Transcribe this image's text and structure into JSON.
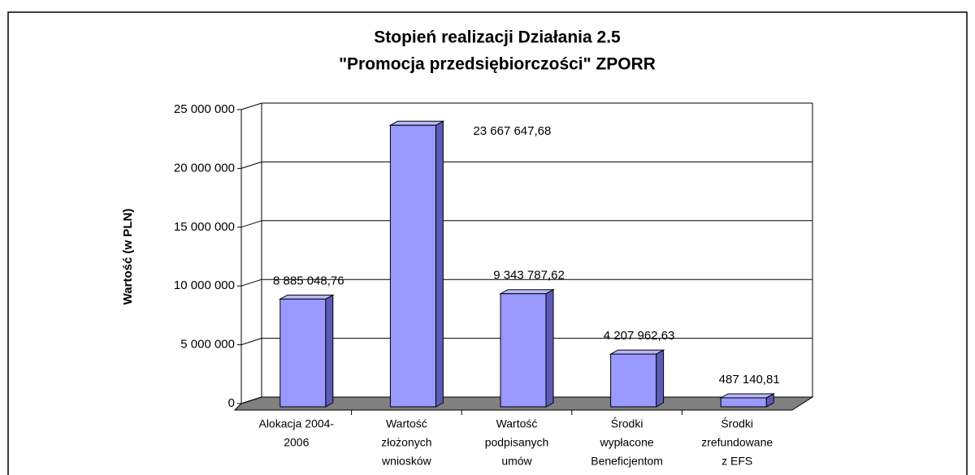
{
  "chart_data": {
    "type": "bar3d",
    "title": [
      "Stopień realizacji Działania 2.5",
      "\"Promocja przedsiębiorczości\" ZPORR"
    ],
    "y_label": "Wartość (w PLN)",
    "categories": [
      [
        "Alokacja 2004-",
        "2006"
      ],
      [
        "Wartość",
        "złożonych",
        "wniosków"
      ],
      [
        "Wartość",
        "podpisanych",
        "umów"
      ],
      [
        "Środki",
        "wypłacone",
        "Beneficjentom"
      ],
      [
        "Środki",
        "zrefundowane",
        "z EFS"
      ]
    ],
    "values": [
      8885048.76,
      23667647.68,
      9343787.62,
      4207962.63,
      487140.81
    ],
    "value_labels": [
      "8 885 048,76",
      "23 667 647,68",
      "9 343 787,62",
      "4 207 962,63",
      "487 140,81"
    ],
    "color": "#9999ff",
    "ylim": [
      0,
      25000000
    ],
    "yticks": [
      0,
      {
        "value": 5000000,
        "label": "5 000 000"
      },
      {
        "value": 10000000,
        "label": "10 000 000"
      },
      {
        "value": 15000000,
        "label": "15 000 000"
      },
      {
        "value": 20000000,
        "label": "20 000 000"
      },
      {
        "value": 25000000,
        "label": "25 000 000"
      }
    ],
    "grid": true
  }
}
